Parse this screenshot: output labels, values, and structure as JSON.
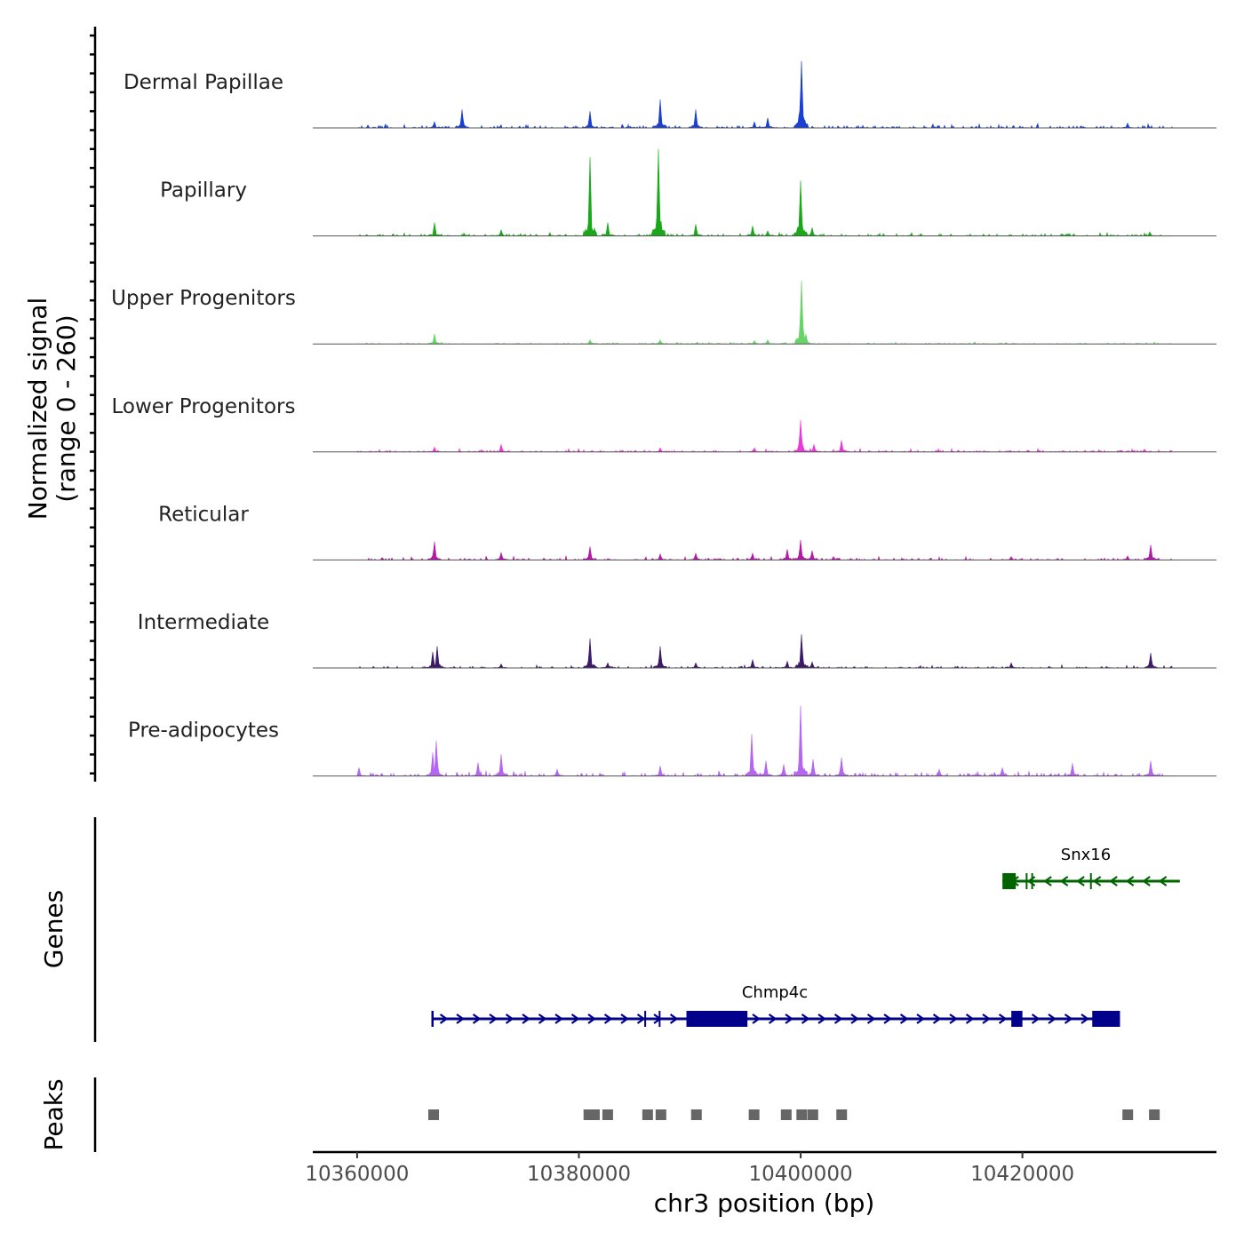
{
  "chart_data": {
    "type": "area",
    "title": "",
    "y_axis_label_line1": "Normalized signal",
    "y_axis_label_line2": "(range 0 - 260)",
    "xlabel": "chr3 position (bp)",
    "x_range": [
      10356000,
      10437500
    ],
    "signal_range": [
      0,
      260
    ],
    "x_ticks": [
      10360000,
      10380000,
      10400000,
      10420000
    ],
    "x_tick_labels": [
      "10360000",
      "10380000",
      "10400000",
      "10420000"
    ],
    "tracks": [
      {
        "name": "Dermal Papillae",
        "color": "#1a3fd1",
        "baseline": 8,
        "noise": 7,
        "start": 10360000,
        "end": 10433500,
        "peaks": [
          [
            10367000,
            18
          ],
          [
            10369500,
            55
          ],
          [
            10381000,
            50
          ],
          [
            10387300,
            85
          ],
          [
            10390500,
            55
          ],
          [
            10395800,
            18
          ],
          [
            10397000,
            30
          ],
          [
            10400050,
            200
          ],
          [
            10429500,
            14
          ]
        ]
      },
      {
        "name": "Papillary",
        "color": "#1aa81a",
        "baseline": 7,
        "noise": 6,
        "start": 10360000,
        "end": 10433500,
        "peaks": [
          [
            10367000,
            40
          ],
          [
            10373000,
            18
          ],
          [
            10381000,
            235
          ],
          [
            10382600,
            40
          ],
          [
            10387200,
            260
          ],
          [
            10390500,
            35
          ],
          [
            10395700,
            30
          ],
          [
            10397000,
            15
          ],
          [
            10400000,
            165
          ],
          [
            10401000,
            25
          ],
          [
            10431500,
            12
          ]
        ]
      },
      {
        "name": "Upper Progenitors",
        "color": "#66d466",
        "baseline": 4,
        "noise": 3,
        "start": 10360000,
        "end": 10433500,
        "peaks": [
          [
            10367000,
            30
          ],
          [
            10381000,
            12
          ],
          [
            10387300,
            12
          ],
          [
            10395800,
            10
          ],
          [
            10397000,
            12
          ],
          [
            10400100,
            190
          ],
          [
            10400500,
            30
          ]
        ]
      },
      {
        "name": "Lower Progenitors",
        "color": "#e83ad6",
        "baseline": 7,
        "noise": 5,
        "start": 10360000,
        "end": 10433500,
        "peaks": [
          [
            10367000,
            14
          ],
          [
            10373000,
            22
          ],
          [
            10387300,
            12
          ],
          [
            10395800,
            12
          ],
          [
            10400000,
            95
          ],
          [
            10401200,
            22
          ],
          [
            10403700,
            35
          ],
          [
            10431000,
            8
          ]
        ]
      },
      {
        "name": "Reticular",
        "color": "#b31aa8",
        "baseline": 8,
        "noise": 6,
        "start": 10361000,
        "end": 10433500,
        "peaks": [
          [
            10367000,
            55
          ],
          [
            10373000,
            22
          ],
          [
            10381000,
            40
          ],
          [
            10387300,
            18
          ],
          [
            10390500,
            20
          ],
          [
            10395700,
            20
          ],
          [
            10398800,
            32
          ],
          [
            10400000,
            60
          ],
          [
            10401000,
            28
          ],
          [
            10403000,
            10
          ],
          [
            10419000,
            10
          ],
          [
            10429500,
            12
          ],
          [
            10431600,
            45
          ]
        ]
      },
      {
        "name": "Intermediate",
        "color": "#3d1a66",
        "baseline": 6,
        "noise": 5,
        "start": 10360000,
        "end": 10433500,
        "peaks": [
          [
            10366800,
            48
          ],
          [
            10367200,
            65
          ],
          [
            10373000,
            12
          ],
          [
            10381000,
            88
          ],
          [
            10382600,
            15
          ],
          [
            10387300,
            65
          ],
          [
            10390500,
            15
          ],
          [
            10395700,
            25
          ],
          [
            10398800,
            20
          ],
          [
            10400050,
            100
          ],
          [
            10401000,
            18
          ],
          [
            10419000,
            15
          ],
          [
            10431600,
            45
          ]
        ]
      },
      {
        "name": "Pre-adipocytes",
        "color": "#b566f0",
        "baseline": 10,
        "noise": 8,
        "start": 10360000,
        "end": 10433500,
        "peaks": [
          [
            10360200,
            25
          ],
          [
            10366800,
            70
          ],
          [
            10367100,
            105
          ],
          [
            10370900,
            40
          ],
          [
            10373000,
            65
          ],
          [
            10378000,
            20
          ],
          [
            10387300,
            30
          ],
          [
            10395600,
            125
          ],
          [
            10396900,
            45
          ],
          [
            10398500,
            35
          ],
          [
            10400030,
            210
          ],
          [
            10401100,
            50
          ],
          [
            10403700,
            55
          ],
          [
            10412500,
            20
          ],
          [
            10418200,
            25
          ],
          [
            10424500,
            38
          ],
          [
            10431600,
            45
          ]
        ]
      }
    ],
    "gene_section_label": "Genes",
    "genes": [
      {
        "name": "Snx16",
        "color": "#006400",
        "start": 10418200,
        "end": 10434200,
        "strand": "-",
        "exons": [
          [
            10418200,
            10419400
          ],
          [
            10420300,
            10420400
          ],
          [
            10420800,
            10420900
          ],
          [
            10426100,
            10426200
          ]
        ]
      },
      {
        "name": "Chmp4c",
        "color": "#00008b",
        "start": 10366700,
        "end": 10428800,
        "strand": "+",
        "exons": [
          [
            10366700,
            10366900
          ],
          [
            10385900,
            10386000
          ],
          [
            10387200,
            10387300
          ],
          [
            10389700,
            10395200
          ],
          [
            10419000,
            10420000
          ],
          [
            10426300,
            10428800
          ]
        ]
      }
    ],
    "peak_section_label": "Peaks",
    "peak_color": "#666666",
    "peaks": [
      10366900,
      10380900,
      10381400,
      10382600,
      10386200,
      10387400,
      10390600,
      10395800,
      10398700,
      10400100,
      10401100,
      10403700,
      10429500,
      10431900
    ]
  }
}
